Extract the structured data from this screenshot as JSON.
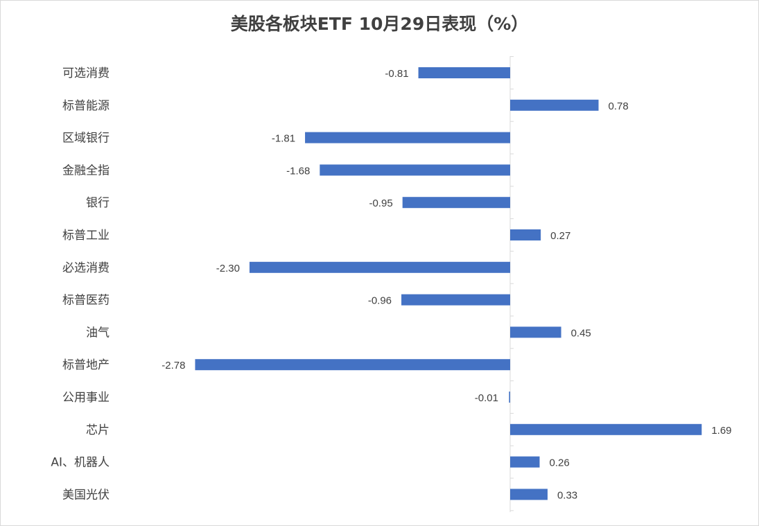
{
  "chart_data": {
    "type": "bar",
    "orientation": "horizontal",
    "title": "美股各板块ETF  10月29日表现（%）",
    "xlabel": "",
    "ylabel": "",
    "categories": [
      "可选消费",
      "标普能源",
      "区域银行",
      "金融全指",
      "银行",
      "标普工业",
      "必选消费",
      "标普医药",
      "油气",
      "标普地产",
      "公用事业",
      "芯片",
      "AI、机器人",
      "美国光伏"
    ],
    "values": [
      -0.81,
      0.78,
      -1.81,
      -1.68,
      -0.95,
      0.27,
      -2.3,
      -0.96,
      0.45,
      -2.78,
      -0.01,
      1.69,
      0.26,
      0.33
    ],
    "value_labels": [
      "-0.81",
      "0.78",
      "-1.81",
      "-1.68",
      "-0.95",
      "0.27",
      "-2.30",
      "-0.96",
      "0.45",
      "-2.78",
      "-0.01",
      "1.69",
      "0.26",
      "0.33"
    ],
    "bar_color": "#4472C4",
    "grid": false,
    "legend": "none"
  }
}
